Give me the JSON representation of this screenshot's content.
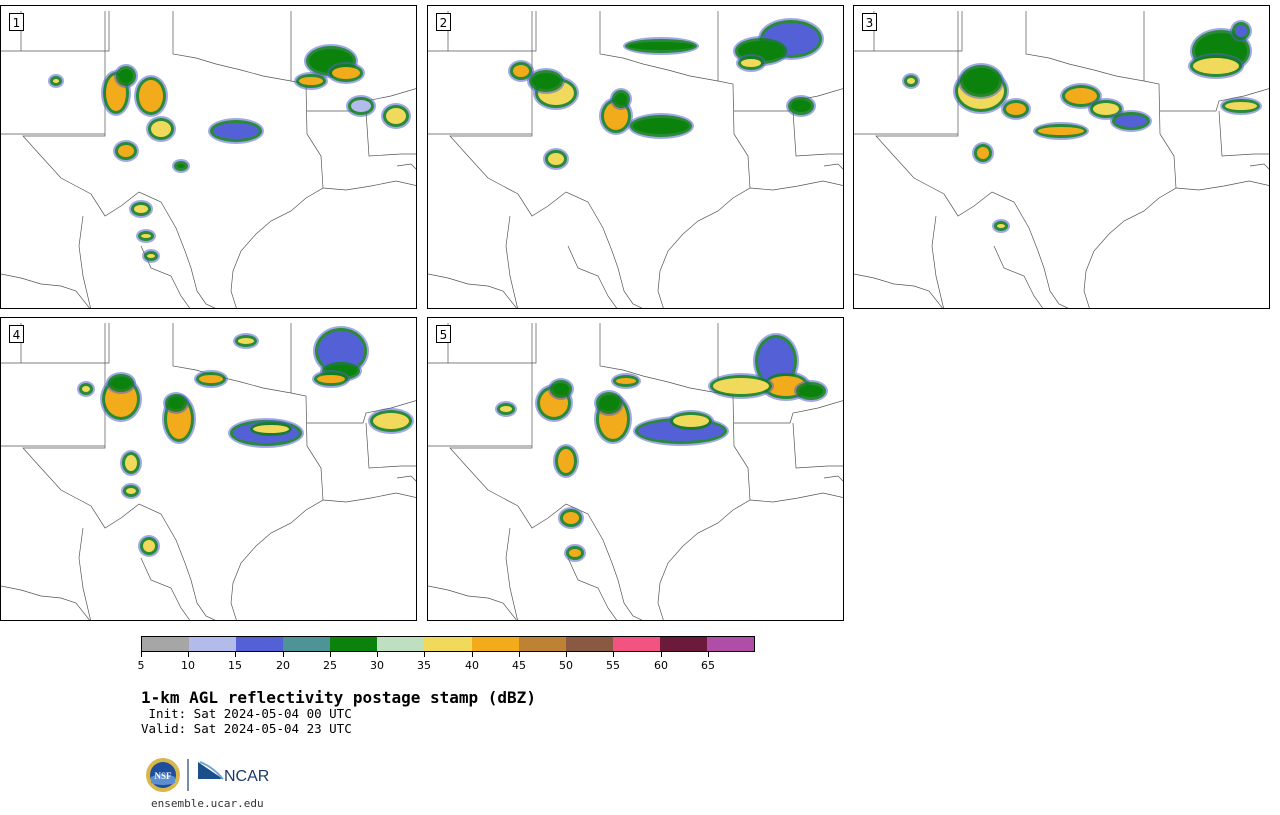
{
  "title": "1-km AGL reflectivity postage stamp (dBZ)",
  "init_line": " Init: Sat 2024-05-04 00 UTC",
  "valid_line": "Valid: Sat 2024-05-04 23 UTC",
  "website": "ensemble.ucar.edu",
  "logos": {
    "nsf": "NSF",
    "ncar": "NCAR"
  },
  "colorbar": {
    "unit": "dBZ",
    "tick_labels": [
      "5",
      "10",
      "15",
      "20",
      "25",
      "30",
      "35",
      "40",
      "45",
      "50",
      "55",
      "60",
      "65"
    ],
    "colors": [
      "#a6a6a6",
      "#b3bbea",
      "#5461d6",
      "#4e9497",
      "#0b820b",
      "#bfe0c0",
      "#f1da5b",
      "#f2ab1b",
      "#be8234",
      "#8a5941",
      "#f25380",
      "#6b1a3c",
      "#b04da7"
    ]
  },
  "members": [
    {
      "label": "1",
      "cells": [
        [
          115,
          92,
          12,
          20,
          "#f2ab1b"
        ],
        [
          150,
          95,
          14,
          18,
          "#f2ab1b"
        ],
        [
          125,
          75,
          9,
          9,
          "#0b820b"
        ],
        [
          160,
          128,
          12,
          10,
          "#f1da5b"
        ],
        [
          125,
          150,
          10,
          8,
          "#f2ab1b"
        ],
        [
          330,
          60,
          24,
          14,
          "#0b820b"
        ],
        [
          345,
          72,
          16,
          8,
          "#f2ab1b"
        ],
        [
          310,
          80,
          14,
          6,
          "#f2ab1b"
        ],
        [
          235,
          130,
          25,
          10,
          "#5461d6"
        ],
        [
          360,
          105,
          12,
          8,
          "#b3bbea"
        ],
        [
          395,
          115,
          12,
          10,
          "#f1da5b"
        ],
        [
          140,
          208,
          9,
          6,
          "#f1da5b"
        ],
        [
          145,
          235,
          7,
          4,
          "#f1da5b"
        ],
        [
          150,
          255,
          6,
          4,
          "#f1da5b"
        ],
        [
          55,
          80,
          5,
          4,
          "#f1da5b"
        ],
        [
          180,
          165,
          6,
          4,
          "#0b820b"
        ]
      ]
    },
    {
      "label": "2",
      "cells": [
        [
          555,
          92,
          20,
          14,
          "#f1da5b"
        ],
        [
          545,
          80,
          16,
          10,
          "#0b820b"
        ],
        [
          615,
          115,
          14,
          16,
          "#f2ab1b"
        ],
        [
          620,
          98,
          8,
          8,
          "#0b820b"
        ],
        [
          660,
          125,
          30,
          10,
          "#0b820b"
        ],
        [
          790,
          38,
          30,
          18,
          "#5461d6"
        ],
        [
          760,
          50,
          25,
          12,
          "#0b820b"
        ],
        [
          750,
          62,
          12,
          6,
          "#f1da5b"
        ],
        [
          555,
          158,
          10,
          8,
          "#f1da5b"
        ],
        [
          520,
          70,
          10,
          8,
          "#f2ab1b"
        ],
        [
          660,
          45,
          35,
          6,
          "#0b820b"
        ],
        [
          800,
          105,
          12,
          8,
          "#0b820b"
        ]
      ]
    },
    {
      "label": "3",
      "cells": [
        [
          980,
          90,
          25,
          20,
          "#f1da5b"
        ],
        [
          980,
          80,
          20,
          15,
          "#0b820b"
        ],
        [
          1015,
          108,
          12,
          8,
          "#f2ab1b"
        ],
        [
          1080,
          95,
          18,
          10,
          "#f2ab1b"
        ],
        [
          1105,
          108,
          15,
          8,
          "#f1da5b"
        ],
        [
          1060,
          130,
          25,
          6,
          "#f2ab1b"
        ],
        [
          1220,
          50,
          28,
          20,
          "#0b820b"
        ],
        [
          1215,
          65,
          25,
          10,
          "#f1da5b"
        ],
        [
          1240,
          105,
          18,
          6,
          "#f1da5b"
        ],
        [
          1130,
          120,
          18,
          8,
          "#5461d6"
        ],
        [
          982,
          152,
          8,
          8,
          "#f2ab1b"
        ],
        [
          1000,
          225,
          6,
          4,
          "#f1da5b"
        ],
        [
          910,
          80,
          6,
          5,
          "#f1da5b"
        ],
        [
          1240,
          30,
          8,
          8,
          "#5461d6"
        ]
      ]
    },
    {
      "label": "4",
      "cells": [
        [
          120,
          398,
          18,
          20,
          "#f2ab1b"
        ],
        [
          120,
          382,
          12,
          8,
          "#0b820b"
        ],
        [
          178,
          418,
          14,
          22,
          "#f2ab1b"
        ],
        [
          175,
          402,
          10,
          8,
          "#0b820b"
        ],
        [
          130,
          462,
          8,
          10,
          "#f1da5b"
        ],
        [
          265,
          432,
          35,
          12,
          "#5461d6"
        ],
        [
          270,
          428,
          20,
          6,
          "#f1da5b"
        ],
        [
          340,
          350,
          25,
          22,
          "#5461d6"
        ],
        [
          340,
          370,
          18,
          8,
          "#0b820b"
        ],
        [
          330,
          378,
          16,
          6,
          "#f2ab1b"
        ],
        [
          390,
          420,
          20,
          10,
          "#f1da5b"
        ],
        [
          148,
          545,
          8,
          8,
          "#f1da5b"
        ],
        [
          130,
          490,
          7,
          5,
          "#f1da5b"
        ],
        [
          210,
          378,
          14,
          6,
          "#f2ab1b"
        ],
        [
          245,
          340,
          10,
          5,
          "#f1da5b"
        ],
        [
          85,
          388,
          6,
          5,
          "#f1da5b"
        ]
      ]
    },
    {
      "label": "5",
      "cells": [
        [
          553,
          402,
          16,
          16,
          "#f2ab1b"
        ],
        [
          560,
          388,
          10,
          8,
          "#0b820b"
        ],
        [
          612,
          418,
          16,
          22,
          "#f2ab1b"
        ],
        [
          608,
          402,
          12,
          10,
          "#0b820b"
        ],
        [
          565,
          460,
          10,
          14,
          "#f2ab1b"
        ],
        [
          680,
          430,
          45,
          12,
          "#5461d6"
        ],
        [
          690,
          420,
          20,
          8,
          "#f1da5b"
        ],
        [
          775,
          360,
          20,
          25,
          "#5461d6"
        ],
        [
          785,
          385,
          22,
          12,
          "#f2ab1b"
        ],
        [
          740,
          385,
          30,
          10,
          "#f1da5b"
        ],
        [
          810,
          390,
          14,
          8,
          "#0b820b"
        ],
        [
          570,
          517,
          10,
          8,
          "#f2ab1b"
        ],
        [
          574,
          552,
          8,
          6,
          "#f2ab1b"
        ],
        [
          505,
          408,
          8,
          5,
          "#f1da5b"
        ],
        [
          625,
          380,
          12,
          5,
          "#f2ab1b"
        ]
      ]
    }
  ]
}
